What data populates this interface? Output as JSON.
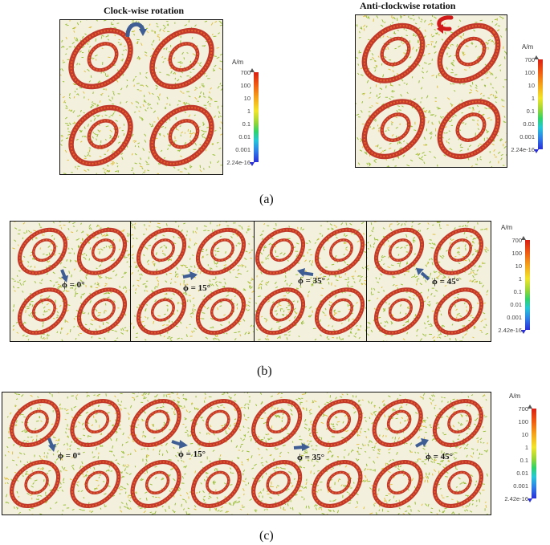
{
  "panel_a": {
    "left_title": "Clock-wise rotation",
    "right_title": "Anti-clockwise rotation",
    "legend_unit": "A/m",
    "legend_ticks": [
      "700",
      "100",
      "10",
      "1",
      "0.1",
      "0.01",
      "0.001",
      "2.24e-16"
    ],
    "caption": "(a)",
    "arrow_colors": {
      "clockwise": "#3d5d94",
      "anticlockwise": "#d11a1a"
    }
  },
  "panel_b": {
    "phi_labels": [
      "ϕ = 0°",
      "ϕ = 15°",
      "ϕ = 35°",
      "ϕ = 45°"
    ],
    "legend_unit": "A/m",
    "legend_ticks": [
      "700",
      "100",
      "10",
      "1",
      "0.1",
      "0.01",
      "0.001",
      "2.42e-16"
    ],
    "caption": "(b)"
  },
  "panel_c": {
    "phi_labels": [
      "ϕ = 0°",
      "ϕ = 15°",
      "ϕ = 35°",
      "ϕ = 45°"
    ],
    "legend_unit": "A/m",
    "legend_ticks": [
      "700",
      "100",
      "10",
      "1",
      "0.1",
      "0.01",
      "0.001",
      "2.42e-16"
    ],
    "caption": "(c)"
  },
  "colors": {
    "ring": "#c0392b",
    "ring_inner": "#e8622c",
    "field": "#9bbf3a",
    "phi_arrow": "#3d5d94",
    "background": "#f3f1de"
  }
}
